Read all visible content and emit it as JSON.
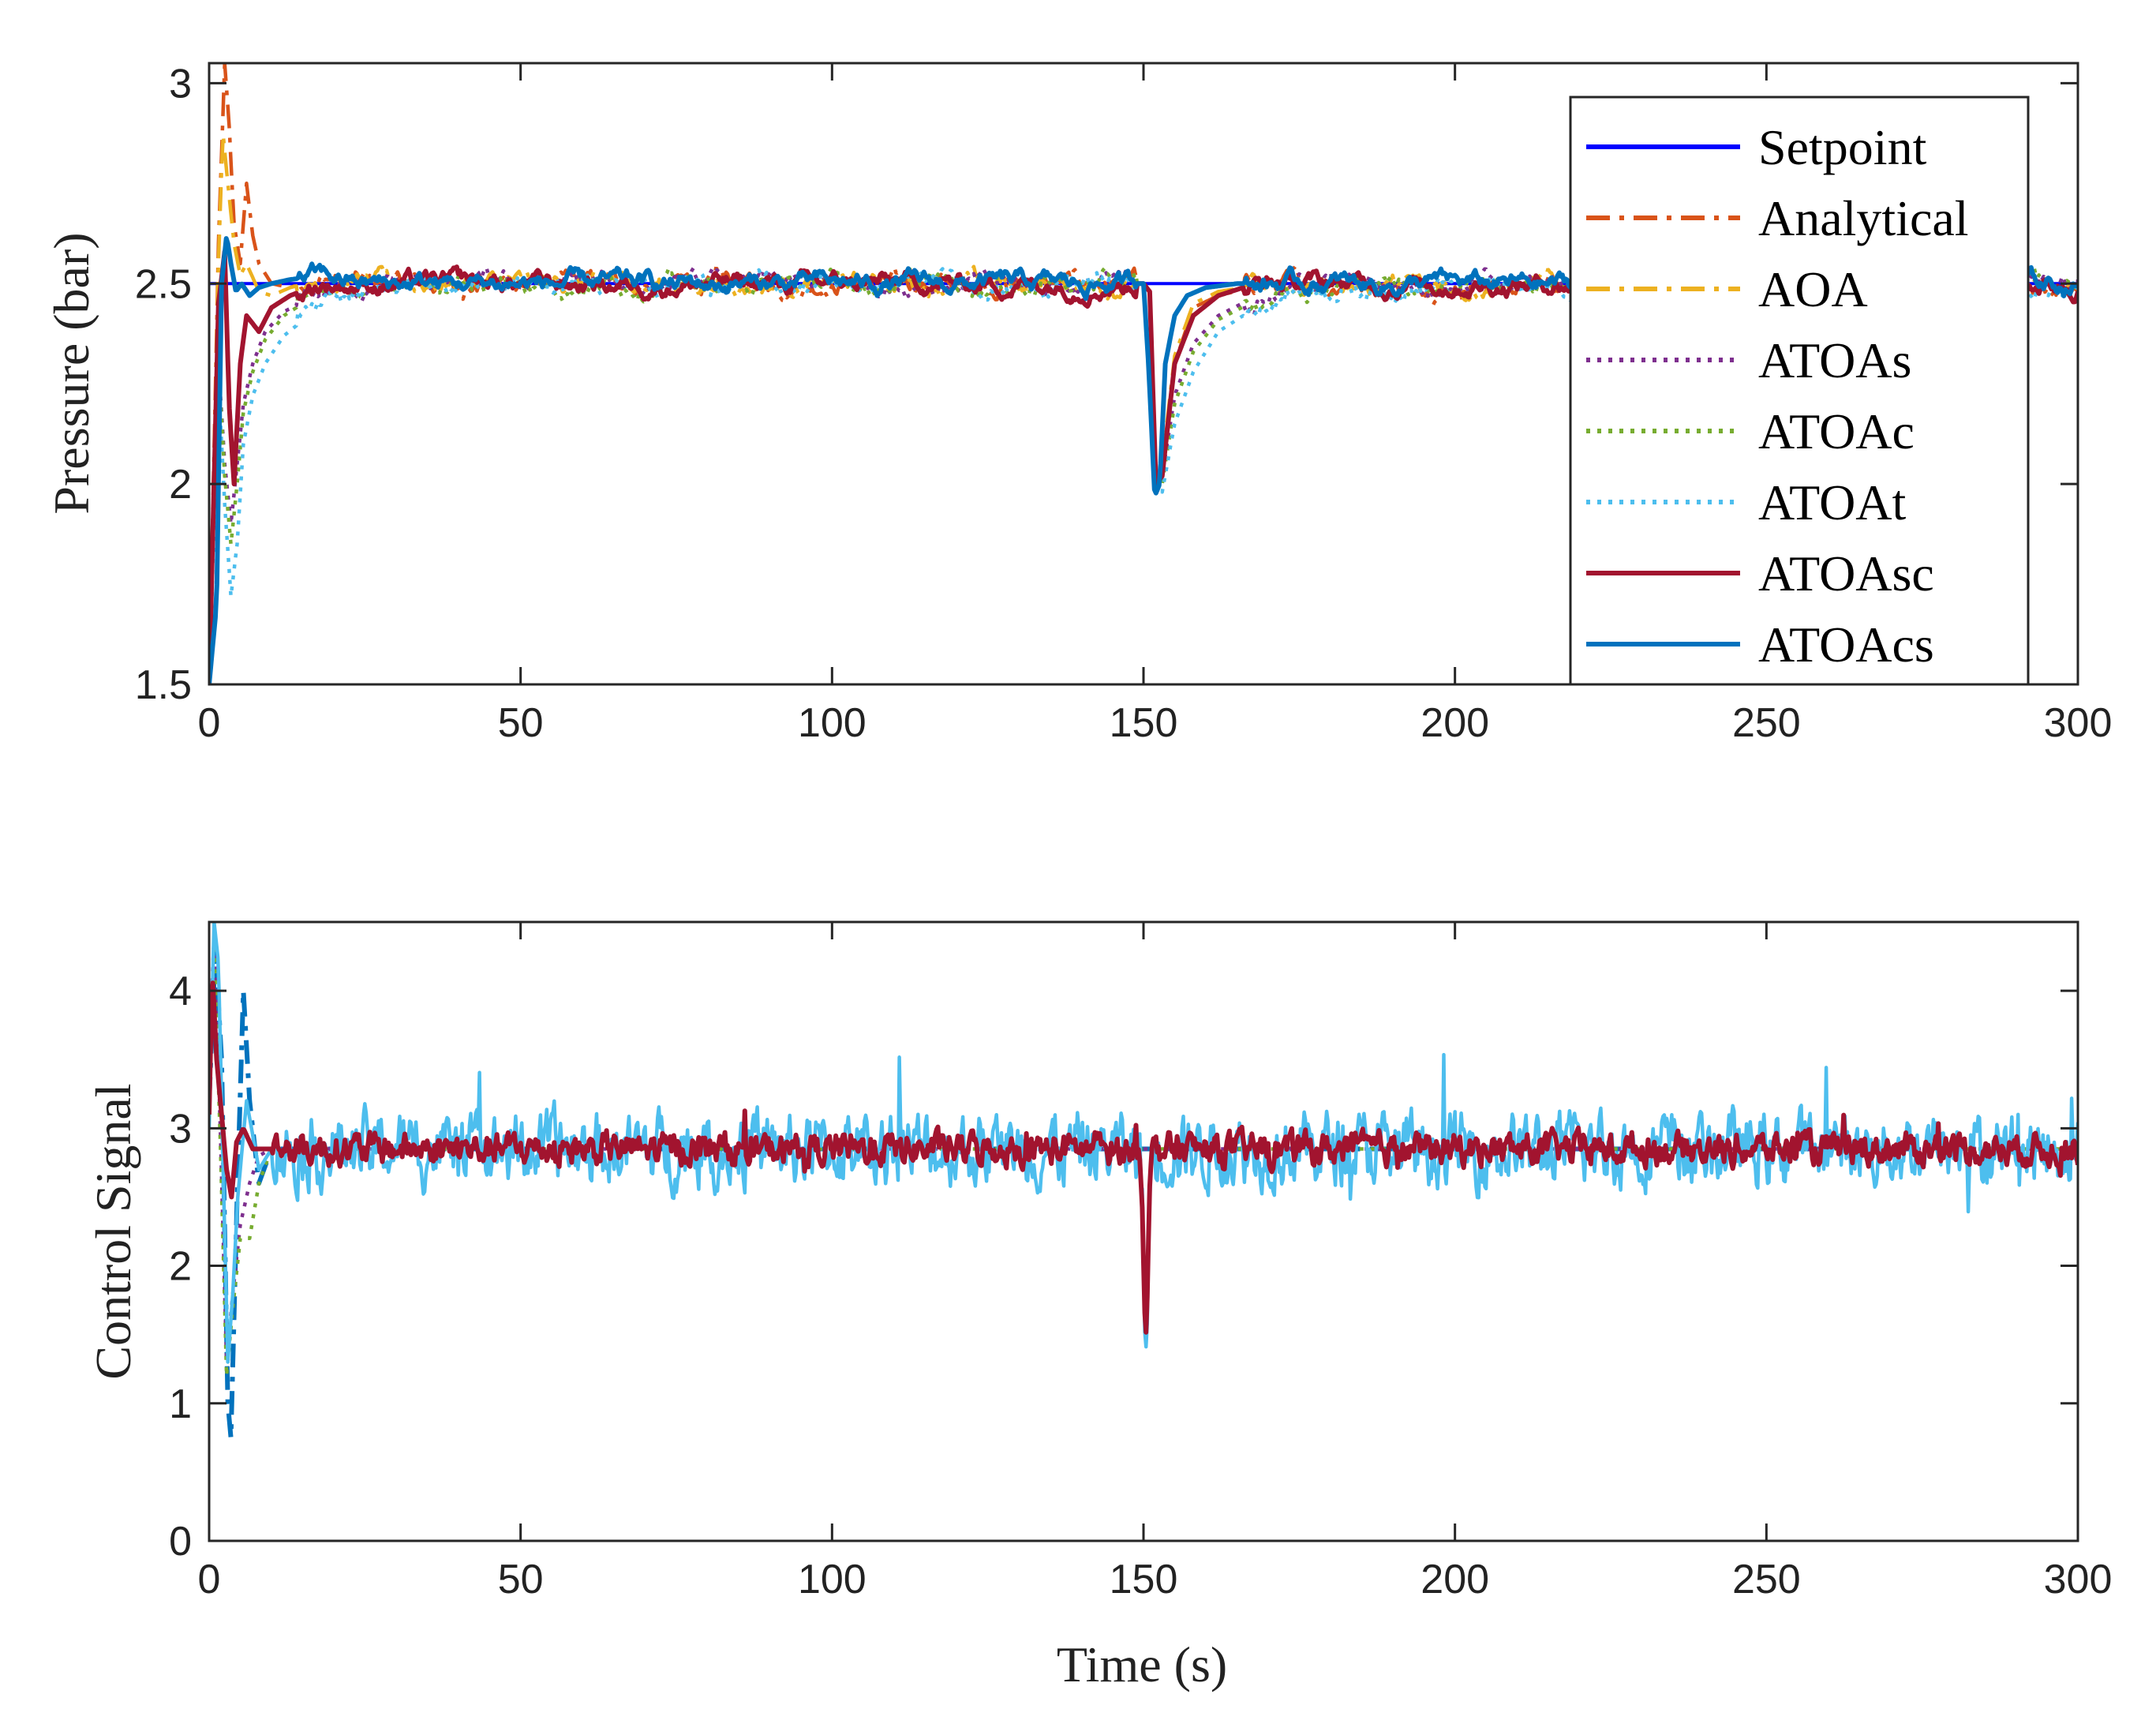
{
  "chart_data": [
    {
      "type": "line",
      "panel": "top",
      "title": "",
      "xlabel": "",
      "ylabel": "Pressure (bar)",
      "xlim": [
        0,
        300
      ],
      "ylim": [
        1.5,
        3.05
      ],
      "xticks": [
        "0",
        "50",
        "100",
        "150",
        "200",
        "250",
        "300"
      ],
      "yticks": [
        "1.5",
        "2",
        "2.5",
        "3"
      ],
      "grid": false,
      "legend_position": "top-right",
      "setpoint": 2.5,
      "disturbance_time": 152,
      "series": [
        {
          "name": "Setpoint",
          "color": "#0000ff",
          "style": "solid",
          "x": [
            0,
            300
          ],
          "y": [
            2.5,
            2.5
          ]
        },
        {
          "name": "Analytical",
          "color": "#d95319",
          "style": "dashdot",
          "x": [
            0,
            1.5,
            2.5,
            3.2,
            4,
            5,
            6,
            7,
            8,
            10,
            13,
            18,
            25,
            150,
            151,
            152,
            153,
            155,
            158,
            162,
            170,
            300
          ],
          "y": [
            1.5,
            2.6,
            3.05,
            2.9,
            2.65,
            2.55,
            2.75,
            2.62,
            2.55,
            2.5,
            2.49,
            2.52,
            2.5,
            2.5,
            2.48,
            2.0,
            2.05,
            2.3,
            2.44,
            2.47,
            2.5,
            2.49
          ]
        },
        {
          "name": "AOA",
          "color": "#edb120",
          "style": "dashdot",
          "x": [
            0,
            1.5,
            2.2,
            3,
            4,
            5,
            6,
            8,
            10,
            13,
            18,
            25,
            150,
            151,
            152,
            153,
            155,
            158,
            162,
            170,
            300
          ],
          "y": [
            1.5,
            2.55,
            2.88,
            2.75,
            2.6,
            2.52,
            2.55,
            2.48,
            2.47,
            2.49,
            2.51,
            2.5,
            2.5,
            2.48,
            2.0,
            2.05,
            2.32,
            2.45,
            2.48,
            2.5,
            2.49
          ]
        },
        {
          "name": "ATOAs",
          "color": "#7e2f8e",
          "style": "dotted",
          "x": [
            0,
            1.5,
            2.5,
            3.5,
            4.5,
            5.5,
            7,
            9,
            12,
            16,
            22,
            30,
            150,
            151,
            152,
            153,
            155,
            158,
            162,
            167,
            175,
            300
          ],
          "y": [
            1.5,
            2.3,
            2.05,
            1.9,
            2.05,
            2.2,
            2.3,
            2.38,
            2.43,
            2.46,
            2.49,
            2.5,
            2.5,
            2.48,
            2.0,
            2.02,
            2.22,
            2.35,
            2.42,
            2.46,
            2.5,
            2.5
          ]
        },
        {
          "name": "ATOAc",
          "color": "#77ac30",
          "style": "dotted",
          "x": [
            0,
            1.5,
            2.5,
            3.5,
            4.5,
            5.5,
            7,
            9,
            12,
            16,
            22,
            30,
            150,
            151,
            152,
            153,
            155,
            158,
            162,
            167,
            175,
            300
          ],
          "y": [
            1.5,
            2.3,
            2.02,
            1.85,
            2.0,
            2.18,
            2.28,
            2.36,
            2.42,
            2.46,
            2.49,
            2.5,
            2.5,
            2.48,
            2.0,
            2.0,
            2.2,
            2.33,
            2.41,
            2.45,
            2.5,
            2.5
          ]
        },
        {
          "name": "ATOAt",
          "color": "#4dbeee",
          "style": "dotted",
          "x": [
            0,
            1.5,
            2.5,
            3.5,
            4.5,
            5.5,
            7,
            9,
            12,
            16,
            22,
            30,
            150,
            151,
            152,
            153,
            155,
            158,
            162,
            167,
            175,
            300
          ],
          "y": [
            1.5,
            2.25,
            1.95,
            1.72,
            1.85,
            2.1,
            2.22,
            2.3,
            2.37,
            2.42,
            2.46,
            2.5,
            2.5,
            2.48,
            2.0,
            1.98,
            2.15,
            2.28,
            2.38,
            2.43,
            2.49,
            2.5
          ]
        },
        {
          "name": "ATOAsc",
          "color": "#a2142f",
          "style": "solid",
          "x": [
            0,
            1.5,
            2.5,
            3.2,
            4,
            5,
            6,
            8,
            10,
            13,
            18,
            25,
            150,
            151,
            152,
            153,
            155,
            158,
            162,
            168,
            300
          ],
          "y": [
            1.5,
            2.45,
            2.58,
            2.2,
            2.0,
            2.3,
            2.42,
            2.38,
            2.44,
            2.47,
            2.5,
            2.5,
            2.5,
            2.48,
            2.0,
            2.02,
            2.3,
            2.42,
            2.47,
            2.5,
            2.5
          ]
        },
        {
          "name": "ATOAcs",
          "color": "#0072bd",
          "style": "solid",
          "x": [
            0,
            1.2,
            2,
            2.8,
            3.5,
            4.3,
            5.2,
            6.5,
            8,
            10,
            13,
            18,
            25,
            150,
            150.8,
            151.8,
            152.6,
            153.5,
            155,
            157,
            160,
            165,
            300
          ],
          "y": [
            1.5,
            1.7,
            2.5,
            2.62,
            2.55,
            2.48,
            2.5,
            2.47,
            2.49,
            2.5,
            2.51,
            2.52,
            2.5,
            2.5,
            2.3,
            1.97,
            2.0,
            2.3,
            2.42,
            2.47,
            2.49,
            2.5,
            2.5
          ]
        }
      ]
    },
    {
      "type": "line",
      "panel": "bottom",
      "title": "",
      "xlabel": "Time (s)",
      "ylabel": "Control Signal",
      "xlim": [
        0,
        300
      ],
      "ylim": [
        0,
        4.5
      ],
      "xticks": [
        "0",
        "50",
        "100",
        "150",
        "200",
        "250",
        "300"
      ],
      "yticks": [
        "0",
        "1",
        "2",
        "3",
        "4"
      ],
      "grid": false,
      "mean_level": 2.85,
      "disturbance_time": 150,
      "series": [
        {
          "name": "ATOAcs",
          "color": "#0072bd",
          "style": "dashdot",
          "x": [
            0,
            1,
            2,
            3,
            3.5,
            4.5,
            5.5,
            6.5,
            8,
            10,
            300
          ],
          "y": [
            3.2,
            4.3,
            3.5,
            1.0,
            0.75,
            2.5,
            4.0,
            3.2,
            2.6,
            2.85,
            2.85
          ]
        },
        {
          "name": "ATOAs",
          "color": "#7e2f8e",
          "style": "dotted",
          "x": [
            0,
            0.8,
            1.8,
            2.8,
            3.8,
            5,
            6.5,
            8,
            10,
            300
          ],
          "y": [
            3.5,
            4.4,
            3.0,
            1.3,
            1.8,
            2.3,
            2.6,
            2.8,
            2.85,
            2.85
          ]
        },
        {
          "name": "ATOAc",
          "color": "#77ac30",
          "style": "dotted",
          "x": [
            0,
            0.8,
            1.8,
            2.8,
            3.8,
            5,
            6.5,
            8,
            10,
            300
          ],
          "y": [
            3.4,
            4.3,
            2.9,
            1.2,
            1.7,
            2.2,
            2.2,
            2.6,
            2.85,
            2.85
          ]
        },
        {
          "name": "ATOAt",
          "color": "#4dbeee",
          "style": "solid",
          "noise_amplitude": 0.45,
          "x": [
            0,
            0.8,
            1.5,
            2.2,
            3,
            3.8,
            4.6,
            6,
            8,
            10,
            300
          ],
          "y": [
            3.0,
            4.5,
            4.2,
            2.8,
            1.3,
            1.8,
            2.5,
            3.2,
            2.7,
            2.85,
            2.85
          ]
        },
        {
          "name": "ATOAsc",
          "color": "#a2142f",
          "style": "solid",
          "noise_amplitude": 0.2,
          "x": [
            0,
            0.5,
            1.2,
            2,
            2.8,
            3.6,
            4.4,
            5.5,
            7,
            10,
            300
          ],
          "y": [
            3.1,
            4.15,
            3.5,
            3.1,
            2.7,
            2.5,
            2.9,
            3.0,
            2.85,
            2.85,
            2.85
          ]
        }
      ]
    }
  ]
}
